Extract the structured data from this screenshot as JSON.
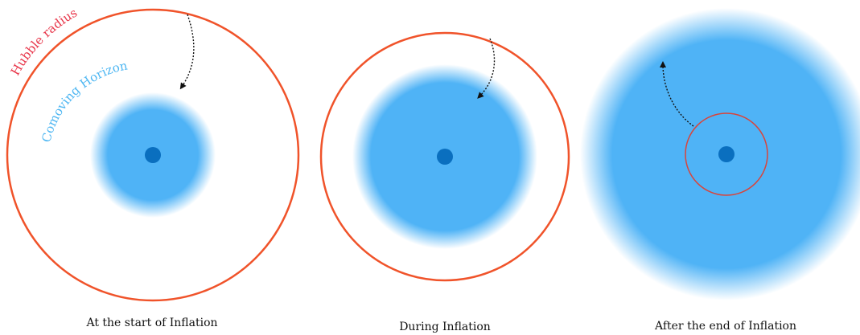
{
  "labels": {
    "hubble_radius": "Hubble radius",
    "comoving_horizon": "Comoving Horizon"
  },
  "panels": [
    {
      "caption": "At the start of Inflation"
    },
    {
      "caption": "During Inflation"
    },
    {
      "caption": "After the end of Inflation"
    }
  ],
  "colors": {
    "hubble_radius": "#f0532a",
    "hubble_label": "#e8364a",
    "comoving_horizon": "#4fb3f6",
    "comoving_label": "#4db6f2",
    "center_dot": "#0a6fbf",
    "inner_circle": "#d9443a",
    "arrow": "#111111"
  }
}
